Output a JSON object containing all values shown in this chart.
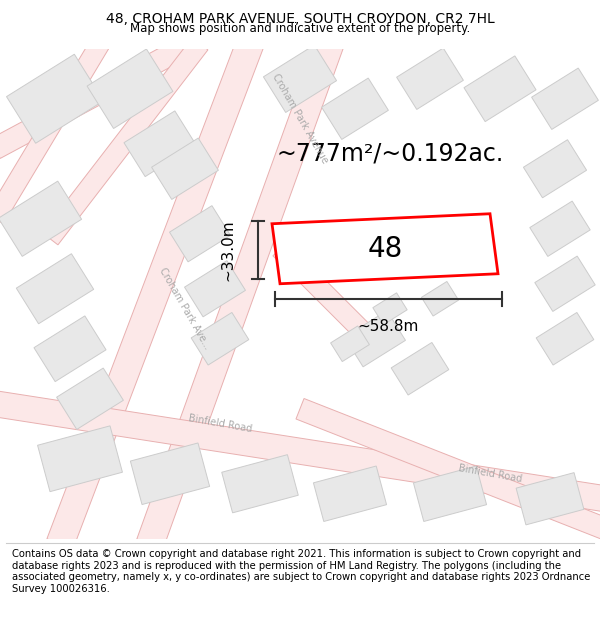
{
  "title_line1": "48, CROHAM PARK AVENUE, SOUTH CROYDON, CR2 7HL",
  "title_line2": "Map shows position and indicative extent of the property.",
  "footer_text": "Contains OS data © Crown copyright and database right 2021. This information is subject to Crown copyright and database rights 2023 and is reproduced with the permission of HM Land Registry. The polygons (including the associated geometry, namely x, y co-ordinates) are subject to Crown copyright and database rights 2023 Ordnance Survey 100026316.",
  "area_label": "~777m²/~0.192ac.",
  "width_label": "~58.8m",
  "height_label": "~33.0m",
  "property_number": "48",
  "map_bg": "#ffffff",
  "road_color": "#fce8e8",
  "road_outline": "#e8b0b0",
  "building_fill": "#e8e8e8",
  "building_outline": "#cccccc",
  "highlight_fill": "#ffffff",
  "highlight_outline": "#ff0000",
  "highlight_lw": 2.0,
  "dim_color": "#333333",
  "title_fontsize": 10,
  "subtitle_fontsize": 8.5,
  "footer_fontsize": 7.2,
  "area_fontsize": 17,
  "dim_label_fontsize": 11,
  "number_fontsize": 20,
  "road_label_fontsize": 7,
  "road_label_color": "#aaaaaa"
}
